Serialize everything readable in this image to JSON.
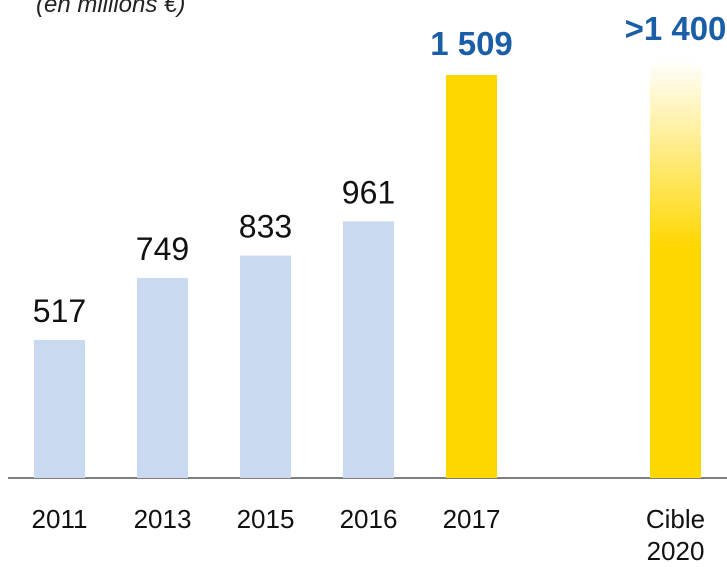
{
  "chart_data": {
    "type": "bar",
    "title": "(en millions €)",
    "categories": [
      "2011",
      "2013",
      "2015",
      "2016",
      "2017",
      "Cible 2020"
    ],
    "values": [
      517,
      749,
      833,
      961,
      1509,
      1400
    ],
    "value_labels": [
      "517",
      "749",
      "833",
      "961",
      "1 509",
      ">1 400"
    ],
    "colors": [
      "#c9d9f0",
      "#c9d9f0",
      "#c9d9f0",
      "#c9d9f0",
      "#ffd700",
      "gradient"
    ],
    "label_colors": [
      "#111111",
      "#111111",
      "#111111",
      "#111111",
      "#1a5ea8",
      "#1a5ea8"
    ]
  }
}
